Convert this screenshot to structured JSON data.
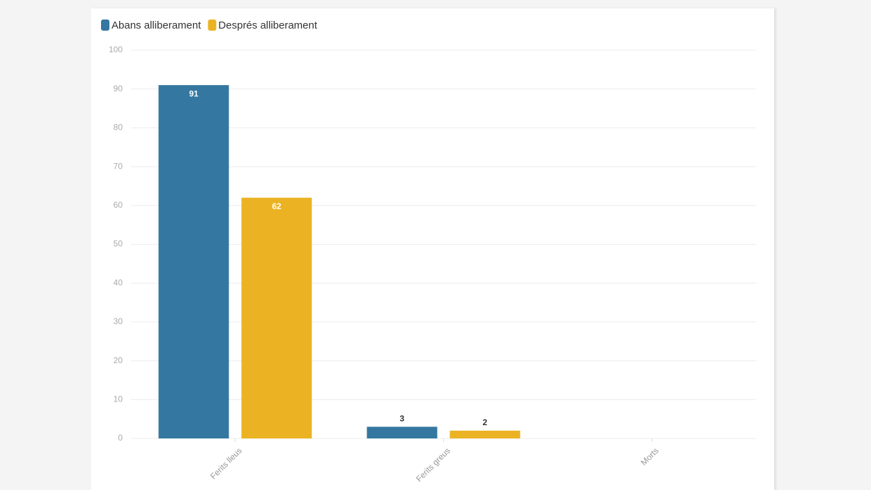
{
  "chart_data": {
    "type": "bar",
    "categories": [
      "Ferits lleus",
      "Ferits greus",
      "Morts"
    ],
    "series": [
      {
        "name": "Abans alliberament",
        "color": "#3477a0",
        "values": [
          91,
          3,
          0
        ]
      },
      {
        "name": "Després alliberament",
        "color": "#ebb324",
        "values": [
          62,
          2,
          0
        ]
      }
    ],
    "ylim": [
      0,
      100
    ],
    "yticks": [
      0,
      10,
      20,
      30,
      40,
      50,
      60,
      70,
      80,
      90,
      100
    ],
    "grid": true,
    "legend": "top-left"
  }
}
